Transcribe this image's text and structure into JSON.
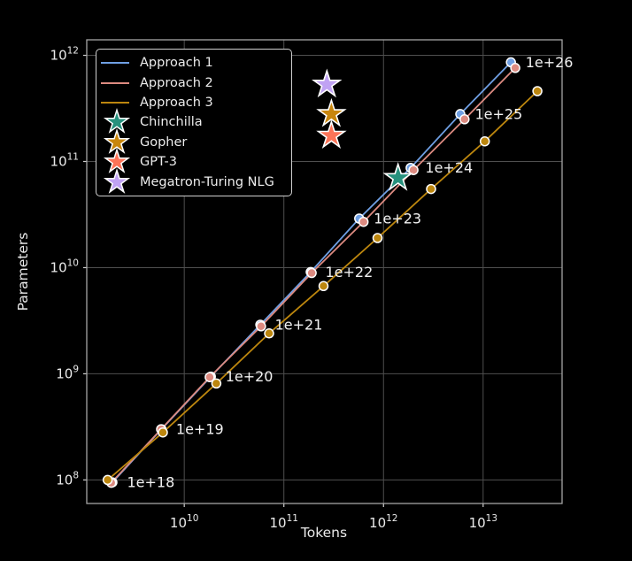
{
  "chart_data": {
    "type": "line",
    "title": "",
    "xlabel": "Tokens",
    "ylabel": "Parameters",
    "xscale": "log",
    "yscale": "log",
    "xlim": [
      1050000000.0,
      62000000000000.0
    ],
    "ylim": [
      60000000.0,
      1400000000000.0
    ],
    "x_tick_exponents": [
      10,
      11,
      12,
      13
    ],
    "y_tick_exponents": [
      8,
      9,
      10,
      11,
      12
    ],
    "grid": true,
    "legend_position": "upper left",
    "colors": {
      "background": "#000000",
      "grid": "#4f4f4f",
      "spine": "#a5a5a5",
      "tick": "#d0d0d0",
      "tick_label": "#eaeaea",
      "annotation": "#f2f2f2",
      "marker_edge": "#ffffff"
    },
    "compute_budget_labels": [
      "1e+18",
      "1e+19",
      "1e+20",
      "1e+21",
      "1e+22",
      "1e+23",
      "1e+24",
      "1e+25",
      "1e+26"
    ],
    "series": [
      {
        "name": "Approach 1",
        "color": "#6f9fe3",
        "tokens": [
          1900000000.0,
          5900000000.0,
          18500000000.0,
          58000000000.0,
          186000000000.0,
          570000000000.0,
          1870000000000.0,
          5900000000000.0,
          19000000000000.0
        ],
        "params": [
          95000000.0,
          300000000.0,
          940000000.0,
          2900000000.0,
          9100000000.0,
          29000000000.0,
          87000000000.0,
          280000000000.0,
          860000000000.0
        ]
      },
      {
        "name": "Approach 2",
        "color": "#dc8a80",
        "tokens": [
          1850000000.0,
          5850000000.0,
          18000000000.0,
          59000000000.0,
          190000000000.0,
          630000000000.0,
          2000000000000.0,
          6500000000000.0,
          21000000000000.0
        ],
        "params": [
          94000000.0,
          300000000.0,
          930000000.0,
          2800000000.0,
          8900000000.0,
          27000000000.0,
          83000000000.0,
          250000000000.0,
          760000000000.0
        ]
      },
      {
        "name": "Approach 3",
        "color": "#bc860e",
        "tokens": [
          1700000000.0,
          6100000000.0,
          21000000000.0,
          71000000000.0,
          250000000000.0,
          870000000000.0,
          3000000000000.0,
          10400000000000.0,
          35000000000000.0
        ],
        "params": [
          100000000.0,
          280000000.0,
          810000000.0,
          2400000000.0,
          6700000000.0,
          19000000000.0,
          55000000000.0,
          155000000000.0,
          460000000000.0
        ]
      }
    ],
    "models": [
      {
        "name": "Chinchilla",
        "color": "#27917d",
        "tokens": 1400000000000.0,
        "params": 70000000000.0
      },
      {
        "name": "Gopher",
        "color": "#c8860d",
        "tokens": 300000000000.0,
        "params": 280000000000.0
      },
      {
        "name": "GPT-3",
        "color": "#fc7458",
        "tokens": 300000000000.0,
        "params": 175000000000.0
      },
      {
        "name": "Megatron-Turing NLG",
        "color": "#c0a2f3",
        "tokens": 270000000000.0,
        "params": 530000000000.0
      }
    ]
  }
}
